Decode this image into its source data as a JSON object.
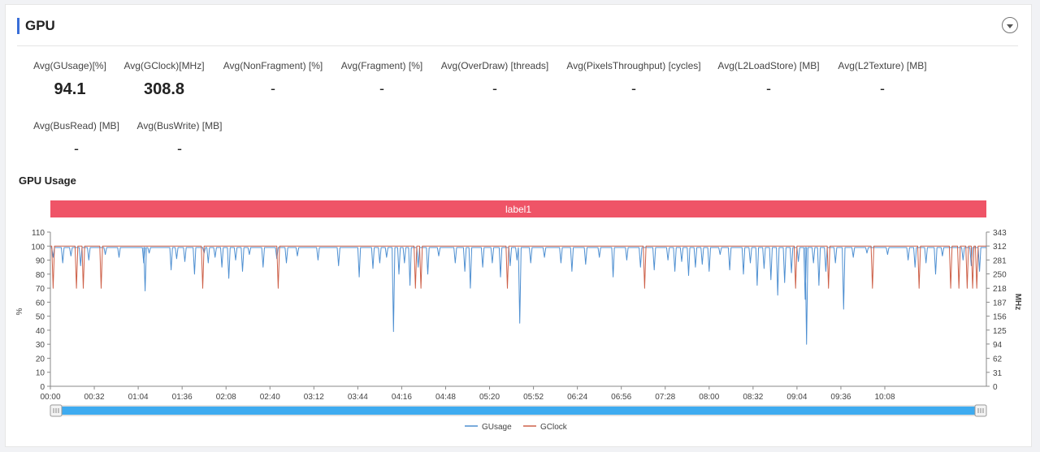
{
  "section": {
    "title": "GPU"
  },
  "metrics": [
    {
      "label": "Avg(GUsage)[%]",
      "value": "94.1"
    },
    {
      "label": "Avg(GClock)[MHz]",
      "value": "308.8"
    },
    {
      "label": "Avg(NonFragment) [%]",
      "value": "-"
    },
    {
      "label": "Avg(Fragment) [%]",
      "value": "-"
    },
    {
      "label": "Avg(OverDraw) [threads]",
      "value": "-"
    },
    {
      "label": "Avg(PixelsThroughput) [cycles]",
      "value": "-"
    },
    {
      "label": "Avg(L2LoadStore) [MB]",
      "value": "-"
    },
    {
      "label": "Avg(L2Texture) [MB]",
      "value": "-"
    },
    {
      "label": "Avg(BusRead) [MB]",
      "value": "-"
    },
    {
      "label": "Avg(BusWrite) [MB]",
      "value": "-"
    }
  ],
  "chart_data": {
    "type": "line",
    "title": "GPU Usage",
    "band_label": "label1",
    "band_color": "#ef5467",
    "ylabel_left": "%",
    "ylabel_right": "MHz",
    "ylim_left": [
      0,
      110
    ],
    "yticks_left": [
      0,
      10,
      20,
      30,
      40,
      50,
      60,
      70,
      80,
      90,
      100,
      110
    ],
    "ylim_right": [
      0,
      343
    ],
    "yticks_right": [
      0,
      31,
      62,
      94,
      125,
      156,
      187,
      218,
      250,
      281,
      312,
      343
    ],
    "xlim_seconds": [
      0,
      682
    ],
    "xticks": [
      "00:00",
      "00:32",
      "01:04",
      "01:36",
      "02:08",
      "02:40",
      "03:12",
      "03:44",
      "04:16",
      "04:48",
      "05:20",
      "05:52",
      "06:24",
      "06:56",
      "07:28",
      "08:00",
      "08:32",
      "09:04",
      "09:36",
      "10:08"
    ],
    "grid": false,
    "legend_position": "bottom-center",
    "series": [
      {
        "name": "GUsage",
        "color": "#4e8fd1",
        "axis": "left",
        "baseline": 99,
        "dips": [
          [
            2,
            92
          ],
          [
            9,
            88
          ],
          [
            15,
            93
          ],
          [
            22,
            86
          ],
          [
            28,
            90
          ],
          [
            40,
            94
          ],
          [
            50,
            92
          ],
          [
            68,
            88
          ],
          [
            69,
            68
          ],
          [
            72,
            95
          ],
          [
            88,
            83
          ],
          [
            92,
            91
          ],
          [
            98,
            89
          ],
          [
            105,
            80
          ],
          [
            112,
            95
          ],
          [
            115,
            88
          ],
          [
            120,
            92
          ],
          [
            125,
            85
          ],
          [
            130,
            77
          ],
          [
            135,
            90
          ],
          [
            140,
            82
          ],
          [
            145,
            94
          ],
          [
            155,
            85
          ],
          [
            165,
            91
          ],
          [
            172,
            88
          ],
          [
            180,
            93
          ],
          [
            195,
            90
          ],
          [
            210,
            86
          ],
          [
            225,
            78
          ],
          [
            235,
            84
          ],
          [
            240,
            88
          ],
          [
            245,
            92
          ],
          [
            250,
            39
          ],
          [
            254,
            80
          ],
          [
            258,
            88
          ],
          [
            262,
            72
          ],
          [
            268,
            85
          ],
          [
            275,
            80
          ],
          [
            283,
            93
          ],
          [
            295,
            88
          ],
          [
            302,
            82
          ],
          [
            306,
            70
          ],
          [
            315,
            85
          ],
          [
            322,
            88
          ],
          [
            328,
            78
          ],
          [
            335,
            86
          ],
          [
            340,
            90
          ],
          [
            342,
            45
          ],
          [
            350,
            88
          ],
          [
            360,
            92
          ],
          [
            372,
            88
          ],
          [
            380,
            82
          ],
          [
            390,
            87
          ],
          [
            400,
            92
          ],
          [
            410,
            78
          ],
          [
            420,
            90
          ],
          [
            430,
            85
          ],
          [
            440,
            83
          ],
          [
            450,
            90
          ],
          [
            455,
            82
          ],
          [
            460,
            89
          ],
          [
            465,
            79
          ],
          [
            470,
            85
          ],
          [
            475,
            87
          ],
          [
            480,
            82
          ],
          [
            488,
            94
          ],
          [
            495,
            83
          ],
          [
            505,
            80
          ],
          [
            510,
            88
          ],
          [
            515,
            72
          ],
          [
            520,
            84
          ],
          [
            525,
            76
          ],
          [
            530,
            65
          ],
          [
            535,
            74
          ],
          [
            540,
            81
          ],
          [
            545,
            89
          ],
          [
            550,
            62
          ],
          [
            551,
            30
          ],
          [
            556,
            88
          ],
          [
            560,
            72
          ],
          [
            565,
            82
          ],
          [
            572,
            88
          ],
          [
            578,
            55
          ],
          [
            585,
            92
          ],
          [
            595,
            95
          ],
          [
            610,
            94
          ],
          [
            625,
            90
          ],
          [
            630,
            85
          ],
          [
            638,
            88
          ],
          [
            645,
            80
          ],
          [
            650,
            93
          ],
          [
            665,
            90
          ],
          [
            671,
            86
          ],
          [
            677,
            82
          ]
        ]
      },
      {
        "name": "GClock",
        "color": "#cd6048",
        "axis": "right",
        "baseline": 312,
        "dips": [
          [
            2,
            218
          ],
          [
            19,
            218
          ],
          [
            24,
            218
          ],
          [
            37,
            218
          ],
          [
            111,
            218
          ],
          [
            166,
            218
          ],
          [
            266,
            218
          ],
          [
            270,
            218
          ],
          [
            333,
            218
          ],
          [
            433,
            218
          ],
          [
            543,
            218
          ],
          [
            567,
            218
          ],
          [
            599,
            218
          ],
          [
            633,
            218
          ],
          [
            656,
            218
          ],
          [
            662,
            218
          ],
          [
            668,
            218
          ],
          [
            672,
            218
          ],
          [
            675,
            218
          ]
        ]
      }
    ]
  }
}
